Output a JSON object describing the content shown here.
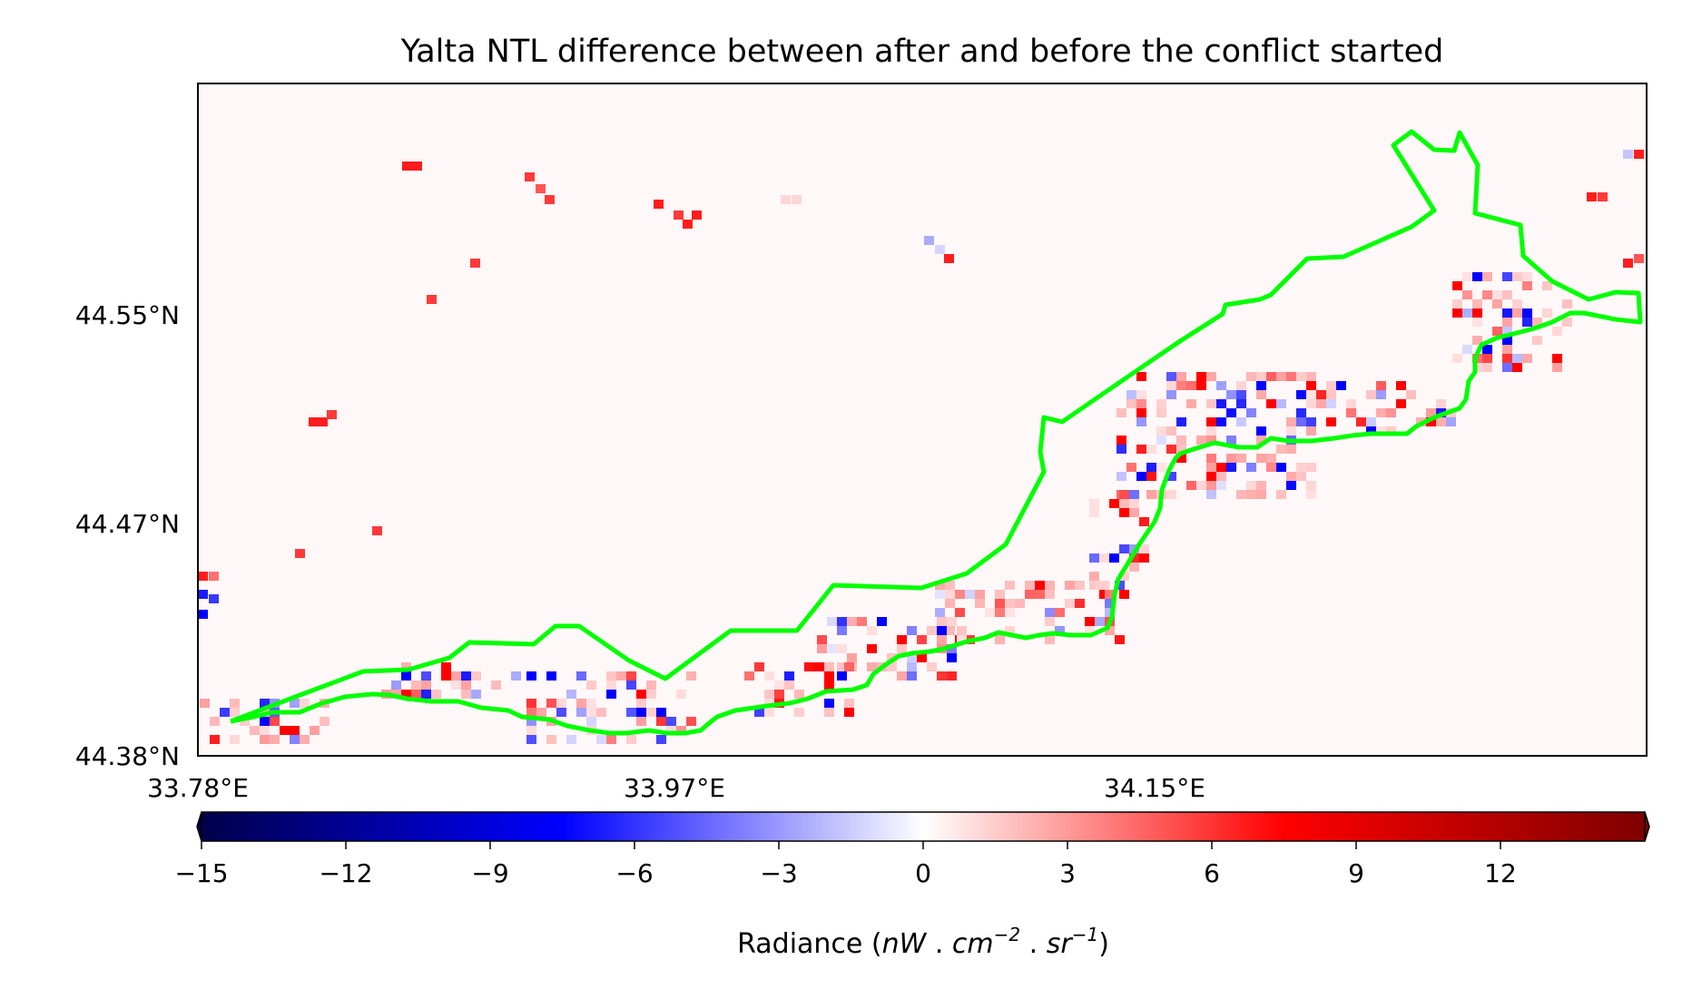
{
  "title": "Yalta NTL difference between after and before the conflict started",
  "map": {
    "y_ticks": [
      "44.55°N",
      "44.47°N",
      "44.38°N"
    ],
    "x_ticks": [
      "33.78°E",
      "33.97°E",
      "34.15°E"
    ],
    "boundary_color": "#00ff00",
    "background_color": "#fff8f8"
  },
  "colorbar": {
    "colormap": "seismic",
    "min": -15,
    "max": 15,
    "extend": "both",
    "ticks": [
      "−15",
      "−12",
      "−9",
      "−6",
      "−3",
      "0",
      "3",
      "6",
      "9",
      "12"
    ],
    "label_text": "Radiance (",
    "label_nW": "nW",
    "label_sep1": " . ",
    "label_cm": "cm",
    "label_exp1": "−2",
    "label_sep2": " . ",
    "label_sr": "sr",
    "label_exp2": "−1",
    "label_close": ")"
  }
}
